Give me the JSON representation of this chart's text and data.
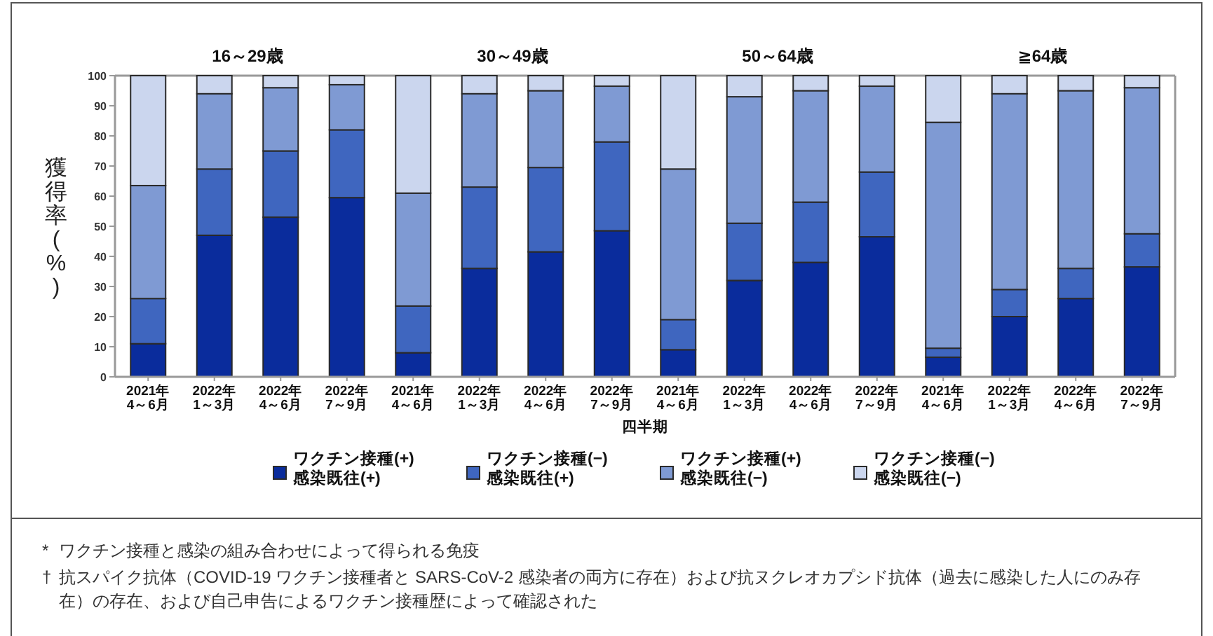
{
  "chart_data": [
    {
      "type": "bar",
      "stacked": true,
      "title": "16～29歳",
      "ylabel": "獲得率(%)",
      "legend": "bottom",
      "categories": [
        "2021年\n4～6月",
        "2022年\n1～3月",
        "2022年\n4～6月",
        "2022年\n7～9月"
      ],
      "ylim": [
        0,
        100
      ],
      "yticks": [
        0,
        10,
        20,
        30,
        40,
        50,
        60,
        70,
        80,
        90,
        100
      ],
      "series": [
        {
          "name": "ワクチン接種(+)\n感染既往(+)",
          "color": "#0a2c9c",
          "values": [
            11,
            47,
            53,
            59.5
          ]
        },
        {
          "name": "ワクチン接種(−)\n感染既往(+)",
          "color": "#3f66bf",
          "values": [
            15,
            22,
            22,
            22.5
          ]
        },
        {
          "name": "ワクチン接種(+)\n感染既往(−)",
          "color": "#7f9ad3",
          "values": [
            37.5,
            25,
            21,
            15
          ]
        },
        {
          "name": "ワクチン接種(−)\n感染既往(−)",
          "color": "#cbd6ee",
          "values": [
            36.5,
            6,
            4,
            3
          ]
        }
      ],
      "annotations": [
        "* ワクチン接種と感染の組み合わせによって得られる免疫",
        "† 抗スパイク抗体（COVID-19 ワクチン接種者と SARS-CoV-2 感染者の両方に存在）および抗ヌクレオカプシド抗体（過去に感染した人にのみ存在）の存在、および自己申告によるワクチン接種歴によって確認された"
      ]
    },
    {
      "type": "bar",
      "stacked": true,
      "title": "30～49歳",
      "tick_labels": "x",
      "xlabel": "四半期",
      "categories": [
        "2021年\n4～6月",
        "2022年\n1～3月",
        "2022年\n4～6月",
        "2022年\n7～9月"
      ],
      "ylim": [
        0,
        100
      ],
      "series": [
        {
          "color": "#0a2c9c",
          "values": [
            8,
            36,
            41.5,
            48.5
          ]
        },
        {
          "color": "#3f66bf",
          "values": [
            15.5,
            27,
            28,
            29.5
          ]
        },
        {
          "color": "#7f9ad3",
          "values": [
            37.5,
            31,
            25.5,
            18.5
          ]
        },
        {
          "color": "#cbd6ee",
          "values": [
            39,
            6,
            5,
            3.5
          ]
        }
      ]
    },
    {
      "type": "bar",
      "stacked": true,
      "title": "50～64歳",
      "tick_labels": "x",
      "categories": [
        "2021年\n4～6月",
        "2022年\n1～3月",
        "2022年\n4～6月",
        "2022年\n7～9月"
      ],
      "ylim": [
        0,
        100
      ],
      "series": [
        {
          "color": "#0a2c9c",
          "values": [
            9,
            32,
            38,
            46.5
          ]
        },
        {
          "color": "#3f66bf",
          "values": [
            10,
            19,
            20,
            21.5
          ]
        },
        {
          "color": "#7f9ad3",
          "values": [
            50,
            42,
            37,
            28.5
          ]
        },
        {
          "color": "#cbd6ee",
          "values": [
            31,
            7,
            5,
            3.5
          ]
        }
      ]
    },
    {
      "type": "bar",
      "stacked": true,
      "title": "≧64歳",
      "tick_labels": "x",
      "categories": [
        "2021年\n4～6月",
        "2022年\n1～3月",
        "2022年\n4～6月",
        "2022年\n7～9月"
      ],
      "ylim": [
        0,
        100
      ],
      "series": [
        {
          "color": "#0a2c9c",
          "values": [
            6.5,
            20,
            26,
            36.5
          ]
        },
        {
          "color": "#3f66bf",
          "values": [
            3,
            9,
            10,
            11
          ]
        },
        {
          "color": "#7f9ad3",
          "values": [
            75,
            65,
            59,
            48.5
          ]
        },
        {
          "color": "#cbd6ee",
          "values": [
            15.5,
            6,
            5,
            4
          ]
        }
      ]
    }
  ]
}
